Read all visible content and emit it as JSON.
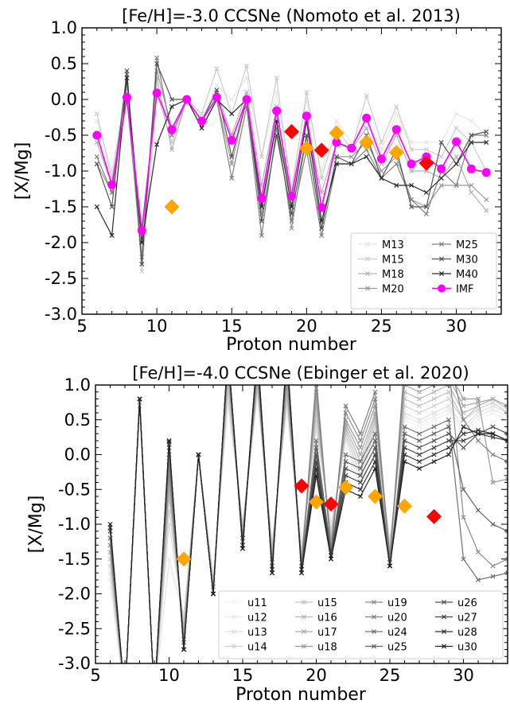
{
  "chart_data": [
    {
      "type": "line",
      "title": "[Fe/H]=-3.0 CCSNe (Nomoto et al. 2013)",
      "xlabel": "Proton number",
      "ylabel": "[X/Mg]",
      "xlim": [
        5,
        33
      ],
      "ylim": [
        -3.0,
        1.0
      ],
      "xticks": [
        "5",
        "10",
        "15",
        "20",
        "25",
        "30"
      ],
      "yticks": [
        "1.0",
        "0.5",
        "0.0",
        "-0.5",
        "-1.0",
        "-1.5",
        "-2.0",
        "-2.5",
        "-3.0"
      ],
      "legend_position": "lower-right",
      "legend_columns": 2,
      "x": [
        6,
        7,
        8,
        9,
        10,
        11,
        12,
        13,
        14,
        15,
        16,
        17,
        18,
        19,
        20,
        21,
        22,
        23,
        24,
        25,
        26,
        27,
        28,
        29,
        30,
        31,
        32
      ],
      "series": [
        {
          "name": "M13",
          "color": "#e6e6e6",
          "marker": "x",
          "values": [
            -0.3,
            -1.0,
            0.1,
            -2.1,
            0.2,
            -0.5,
            0.0,
            -0.3,
            0.2,
            0.0,
            0.3,
            -0.8,
            0.1,
            -1.2,
            0.0,
            -1.0,
            -0.3,
            -0.6,
            -0.3,
            -0.7,
            -0.2,
            -0.6,
            -0.6,
            -0.6,
            -0.2,
            -0.3,
            -0.5
          ]
        },
        {
          "name": "M15",
          "color": "#cccccc",
          "marker": "x",
          "values": [
            -0.2,
            -1.1,
            0.2,
            -2.4,
            0.1,
            -0.6,
            0.0,
            -0.2,
            0.43,
            -0.2,
            0.47,
            -0.8,
            0.3,
            -1.3,
            0.1,
            -1.1,
            -0.4,
            -0.7,
            0.05,
            -0.6,
            -0.1,
            -0.7,
            -0.7,
            -0.8,
            -0.4,
            -0.6,
            -1.0
          ]
        },
        {
          "name": "M18",
          "color": "#b3b3b3",
          "marker": "x",
          "values": [
            -0.6,
            -1.2,
            0.05,
            -2.0,
            0.3,
            -0.7,
            0.0,
            -0.3,
            0.1,
            -0.5,
            0.1,
            -1.2,
            -0.1,
            -1.5,
            -0.3,
            -1.3,
            -0.6,
            -0.7,
            -0.4,
            -0.9,
            -0.5,
            -1.0,
            -1.0,
            -1.1,
            -0.8,
            -1.3,
            -1.55
          ]
        },
        {
          "name": "M20",
          "color": "#999999",
          "marker": "x",
          "values": [
            -0.9,
            -1.3,
            0.0,
            -2.2,
            0.4,
            -0.4,
            0.0,
            -0.4,
            0.0,
            -0.9,
            0.0,
            -1.6,
            -0.3,
            -1.8,
            -0.5,
            -1.8,
            -0.8,
            -0.8,
            -0.6,
            -1.0,
            -0.8,
            -1.4,
            -1.5,
            -1.2,
            -1.2,
            -1.2,
            -1.4
          ]
        },
        {
          "name": "M25",
          "color": "#808080",
          "marker": "x",
          "values": [
            -0.8,
            -1.3,
            0.35,
            -2.3,
            0.58,
            -0.5,
            0.0,
            -0.4,
            0.0,
            -1.1,
            -0.1,
            -1.9,
            -0.4,
            -1.7,
            -0.7,
            -1.9,
            -0.9,
            -0.9,
            -0.7,
            -1.1,
            -0.9,
            -1.4,
            -1.6,
            -1.0,
            -1.2,
            -0.5,
            -0.5
          ]
        },
        {
          "name": "M30",
          "color": "#555555",
          "marker": "x",
          "values": [
            -0.9,
            -1.5,
            0.4,
            -2.3,
            0.5,
            0.0,
            0.0,
            -0.3,
            0.13,
            -0.8,
            0.0,
            -1.7,
            -0.5,
            -1.6,
            -0.5,
            -1.8,
            -0.8,
            -0.9,
            -0.5,
            -1.1,
            -0.7,
            -1.5,
            -1.5,
            -0.6,
            -0.9,
            -0.5,
            -0.45
          ]
        },
        {
          "name": "M40",
          "color": "#2a2a2a",
          "marker": "x",
          "values": [
            -1.5,
            -1.9,
            0.3,
            -2.0,
            -0.63,
            -0.1,
            0.0,
            -0.4,
            0.0,
            -0.2,
            0.0,
            -1.5,
            -0.3,
            -1.5,
            -0.3,
            -1.7,
            -0.9,
            -0.9,
            -0.8,
            -1.1,
            -1.2,
            -1.2,
            -1.3,
            -1.1,
            -0.9,
            -0.6,
            -0.6
          ]
        },
        {
          "name": "IMF",
          "color": "#ff00ff",
          "marker": "o",
          "values": [
            -0.5,
            -1.19,
            0.03,
            -1.83,
            0.09,
            -0.42,
            0.0,
            -0.3,
            0.03,
            -0.57,
            0.0,
            -1.38,
            -0.16,
            -1.35,
            -0.23,
            -1.51,
            -0.6,
            -0.68,
            -0.26,
            -0.83,
            -0.42,
            -0.9,
            -0.8,
            -0.97,
            -0.59,
            -0.97,
            -1.02
          ]
        }
      ],
      "observations": [
        {
          "color": "#ffa500",
          "points": [
            [
              11,
              -1.5
            ],
            [
              20,
              -0.68
            ],
            [
              22,
              -0.47
            ],
            [
              24,
              -0.6
            ],
            [
              26,
              -0.74
            ]
          ]
        },
        {
          "color": "#ff0000",
          "points": [
            [
              19,
              -0.45
            ],
            [
              21,
              -0.71
            ],
            [
              28,
              -0.89
            ]
          ]
        }
      ]
    },
    {
      "type": "line",
      "title": "[Fe/H]=-4.0 CCSNe (Ebinger et al. 2020)",
      "xlabel": "Proton number",
      "ylabel": "[X/Mg]",
      "xlim": [
        5,
        33
      ],
      "ylim": [
        -3.0,
        1.0
      ],
      "xticks": [
        "5",
        "10",
        "15",
        "20",
        "25",
        "30"
      ],
      "yticks": [
        "1.0",
        "0.5",
        "0.0",
        "-0.5",
        "-1.0",
        "-1.5",
        "-2.0",
        "-2.5",
        "-3.0"
      ],
      "legend_position": "lower-right",
      "legend_columns": 4,
      "x": [
        6,
        7,
        8,
        9,
        10,
        11,
        12,
        13,
        14,
        15,
        16,
        17,
        18,
        19,
        20,
        21,
        22,
        23,
        24,
        25,
        26,
        27,
        28,
        29,
        30,
        31,
        32,
        33
      ],
      "series": [
        {
          "name": "u11",
          "color": "#f2f2f2",
          "marker": "x",
          "values": [
            -1.9,
            -3.5,
            0.6,
            -3.5,
            -1.6,
            -2.3,
            0.0,
            -1.7,
            0.7,
            -1.0,
            0.8,
            -1.2,
            0.6,
            -1.2,
            0.3,
            -1.0,
            0.1,
            -0.6,
            0.3,
            -1.2,
            0.5,
            0.4,
            0.5,
            0.6,
            0.3,
            0.5,
            0.6,
            0.5
          ]
        },
        {
          "name": "u12",
          "color": "#e8e8e8",
          "marker": "x",
          "values": [
            -1.8,
            -3.5,
            0.65,
            -3.5,
            -1.5,
            -2.3,
            0.0,
            -1.8,
            0.75,
            -1.0,
            0.85,
            -1.3,
            0.7,
            -1.3,
            0.35,
            -1.0,
            0.2,
            -0.5,
            0.35,
            -1.2,
            0.55,
            0.45,
            0.55,
            0.65,
            0.35,
            0.55,
            0.65,
            0.55
          ]
        },
        {
          "name": "u13",
          "color": "#dddddd",
          "marker": "x",
          "values": [
            -1.7,
            -3.5,
            0.7,
            -3.5,
            -1.0,
            -2.4,
            0.0,
            -1.8,
            0.8,
            -1.0,
            0.9,
            -1.3,
            0.75,
            -1.4,
            0.4,
            -1.1,
            0.25,
            -0.4,
            0.4,
            -1.3,
            0.6,
            0.5,
            0.6,
            0.7,
            0.4,
            0.6,
            0.7,
            0.6
          ]
        },
        {
          "name": "u14",
          "color": "#d0d0d0",
          "marker": "x",
          "values": [
            -1.6,
            -3.5,
            0.7,
            -3.5,
            -0.8,
            -2.4,
            0.0,
            -1.8,
            0.9,
            -1.0,
            0.95,
            -1.3,
            0.8,
            -1.4,
            0.5,
            -1.1,
            0.3,
            -0.3,
            0.45,
            -1.3,
            0.7,
            0.6,
            0.7,
            0.8,
            0.5,
            0.65,
            0.75,
            0.6
          ]
        },
        {
          "name": "u15",
          "color": "#c2c2c2",
          "marker": "x",
          "values": [
            -1.5,
            -3.5,
            0.75,
            -3.5,
            -0.6,
            -2.5,
            0.0,
            -1.9,
            1.0,
            -1.1,
            1.0,
            -1.4,
            0.85,
            -1.5,
            0.6,
            -1.2,
            0.35,
            -0.2,
            0.5,
            -1.4,
            0.8,
            0.7,
            0.8,
            0.9,
            0.5,
            0.7,
            0.8,
            0.65
          ]
        },
        {
          "name": "u16",
          "color": "#b5b5b5",
          "marker": "x",
          "values": [
            -1.4,
            -3.5,
            0.75,
            -3.5,
            -0.5,
            -2.5,
            0.0,
            -1.9,
            1.1,
            -1.1,
            1.05,
            -1.4,
            0.9,
            -1.5,
            0.7,
            -1.2,
            0.4,
            -0.1,
            0.55,
            -1.4,
            0.9,
            0.8,
            0.9,
            1.0,
            0.6,
            0.7,
            0.8,
            0.7
          ]
        },
        {
          "name": "u17",
          "color": "#a8a8a8",
          "marker": "x",
          "values": [
            -1.4,
            -3.5,
            0.8,
            -3.5,
            -0.4,
            -2.6,
            0.0,
            -1.9,
            1.2,
            -1.2,
            1.1,
            -1.5,
            1.0,
            -1.5,
            0.8,
            -1.3,
            0.45,
            0.0,
            0.6,
            -1.5,
            1.0,
            0.9,
            1.0,
            1.1,
            0.7,
            0.75,
            0.8,
            0.7
          ]
        },
        {
          "name": "u18",
          "color": "#9a9a9a",
          "marker": "x",
          "values": [
            -1.3,
            -3.5,
            0.8,
            -3.5,
            -0.3,
            -2.6,
            0.0,
            -2.0,
            1.3,
            -1.2,
            1.2,
            -1.5,
            1.1,
            -1.6,
            0.9,
            -1.3,
            0.5,
            0.1,
            0.7,
            -1.5,
            1.1,
            1.0,
            1.1,
            1.2,
            0.8,
            0.8,
            -0.4,
            -0.35
          ]
        },
        {
          "name": "u19",
          "color": "#8c8c8c",
          "marker": "x",
          "values": [
            -1.3,
            -3.5,
            0.8,
            -3.5,
            -0.2,
            -2.7,
            0.0,
            -2.0,
            1.3,
            -1.2,
            1.2,
            -1.6,
            1.2,
            -1.6,
            1.0,
            -1.4,
            0.6,
            0.2,
            0.8,
            -1.5,
            1.2,
            1.1,
            1.2,
            1.3,
            -0.9,
            -1.4,
            -1.6,
            -1.5
          ]
        },
        {
          "name": "u20",
          "color": "#7f7f7f",
          "marker": "x",
          "values": [
            -1.2,
            -3.5,
            0.8,
            -3.5,
            -0.1,
            -2.7,
            0.0,
            -2.0,
            1.4,
            -1.2,
            1.3,
            -1.6,
            1.3,
            -1.6,
            1.1,
            -1.4,
            0.7,
            0.3,
            0.9,
            -1.5,
            1.3,
            1.2,
            1.3,
            1.4,
            0.5,
            0.2,
            0.0,
            -0.1
          ]
        },
        {
          "name": "u24",
          "color": "#707070",
          "marker": "x",
          "values": [
            -1.2,
            -3.5,
            0.8,
            -3.5,
            0.0,
            -2.8,
            0.0,
            -2.0,
            1.4,
            -1.3,
            1.4,
            -1.6,
            1.3,
            -1.6,
            0.2,
            -1.4,
            0.0,
            -0.1,
            0.3,
            -1.6,
            0.4,
            0.3,
            0.4,
            0.5,
            -1.5,
            -1.8,
            -1.75,
            -1.7
          ]
        },
        {
          "name": "u25",
          "color": "#626262",
          "marker": "x",
          "values": [
            -1.1,
            -3.5,
            0.8,
            -3.5,
            0.1,
            -2.8,
            0.0,
            -2.0,
            1.5,
            -1.3,
            1.4,
            -1.65,
            1.4,
            -1.65,
            0.1,
            -1.4,
            -0.1,
            -0.2,
            0.2,
            -1.6,
            0.3,
            0.2,
            0.3,
            0.4,
            -0.5,
            -0.8,
            -1.0,
            -1.1
          ]
        },
        {
          "name": "u26",
          "color": "#535353",
          "marker": "x",
          "values": [
            -1.1,
            -3.5,
            0.8,
            -3.5,
            0.15,
            -2.8,
            0.0,
            -2.0,
            1.5,
            -1.3,
            1.5,
            -1.65,
            1.4,
            -1.65,
            0.0,
            -1.45,
            -0.2,
            -0.3,
            0.1,
            -1.6,
            0.2,
            0.1,
            0.2,
            0.3,
            0.1,
            0.3,
            0.4,
            0.3
          ]
        },
        {
          "name": "u27",
          "color": "#444444",
          "marker": "x",
          "values": [
            -1.05,
            -3.5,
            0.8,
            -3.5,
            0.18,
            -2.8,
            0.0,
            -2.0,
            1.5,
            -1.3,
            1.5,
            -1.65,
            1.45,
            -1.65,
            -0.1,
            -1.45,
            -0.3,
            -0.4,
            0.0,
            -1.6,
            0.1,
            0.0,
            0.1,
            0.2,
            0.2,
            0.3,
            0.25,
            0.2
          ]
        },
        {
          "name": "u28",
          "color": "#333333",
          "marker": "x",
          "values": [
            -1.05,
            -3.5,
            0.8,
            -3.5,
            0.2,
            -2.8,
            0.0,
            -2.0,
            1.5,
            -1.35,
            1.5,
            -1.7,
            1.45,
            -1.7,
            -0.2,
            -1.5,
            -0.4,
            -0.5,
            -0.1,
            -1.6,
            0.0,
            -0.1,
            0.0,
            0.1,
            0.3,
            0.35,
            0.3,
            0.2
          ]
        },
        {
          "name": "u30",
          "color": "#222222",
          "marker": "x",
          "values": [
            -1.0,
            -3.5,
            0.8,
            -3.5,
            0.2,
            -2.8,
            0.0,
            -2.0,
            1.5,
            -1.35,
            1.5,
            -1.7,
            1.5,
            -1.7,
            -0.3,
            -1.5,
            -0.5,
            -0.6,
            -0.2,
            -1.6,
            -0.1,
            -0.2,
            -0.1,
            0.0,
            0.4,
            0.3,
            0.3,
            0.2
          ]
        }
      ],
      "observations": [
        {
          "color": "#ffa500",
          "points": [
            [
              11,
              -1.5
            ],
            [
              20,
              -0.68
            ],
            [
              22,
              -0.47
            ],
            [
              24,
              -0.6
            ],
            [
              26,
              -0.74
            ]
          ]
        },
        {
          "color": "#ff0000",
          "points": [
            [
              19,
              -0.45
            ],
            [
              21,
              -0.71
            ],
            [
              28,
              -0.89
            ]
          ]
        }
      ]
    }
  ]
}
